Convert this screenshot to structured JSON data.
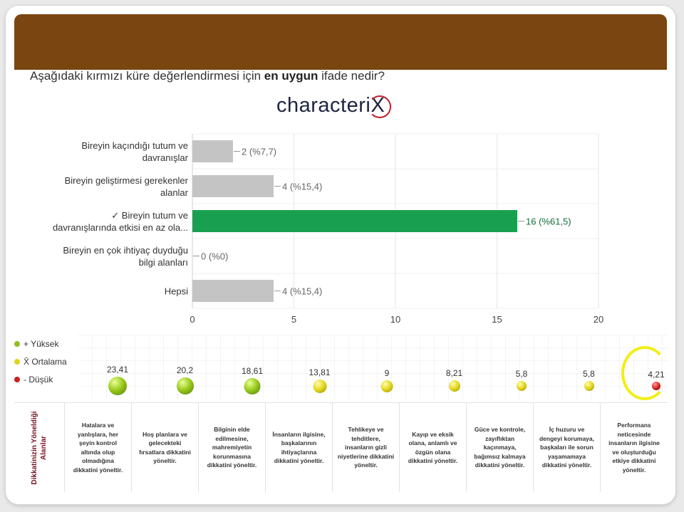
{
  "question": {
    "prefix": "Aşağıdaki kırmızı küre değerlendirmesi için ",
    "emphasis": "en uygun",
    "suffix": " ifade nedir?"
  },
  "logo": {
    "text": "characteri",
    "x": "X"
  },
  "chart_data": {
    "type": "bar",
    "orientation": "horizontal",
    "categories": [
      [
        "Bireyin kaçındığı tutum ve",
        "davranışlar"
      ],
      [
        "Bireyin geliştirmesi gerekenler",
        "alanlar"
      ],
      [
        "✓ Bireyin tutum ve",
        "davranışlarında etkisi en az ola..."
      ],
      [
        "Bireyin en çok ihtiyaç duyduğu",
        "bilgi alanları"
      ],
      [
        "Hepsi"
      ]
    ],
    "values": [
      2,
      4,
      16,
      0,
      4
    ],
    "data_labels": [
      "2 (%7,7)",
      "4 (%15,4)",
      "16 (%61,5)",
      "0 (%0)",
      "4 (%15,4)"
    ],
    "bar_colors": [
      "#c4c4c4",
      "#c4c4c4",
      "#18a050",
      "#c4c4c4",
      "#c4c4c4"
    ],
    "xlim": [
      0,
      20
    ],
    "x_ticks": [
      0,
      5,
      10,
      15,
      20
    ],
    "grid": true
  },
  "legend": [
    {
      "label": "+ Yüksek",
      "color": "#8fbf1a"
    },
    {
      "label": "X̄ Ortalama",
      "color": "#e0d41a"
    },
    {
      "label": "- Düşük",
      "color": "#cc1f1f"
    }
  ],
  "bubbles": [
    {
      "value": "23,41",
      "level": "high"
    },
    {
      "value": "20,2",
      "level": "high"
    },
    {
      "value": "18,61",
      "level": "high"
    },
    {
      "value": "13,81",
      "level": "average"
    },
    {
      "value": "9",
      "level": "average"
    },
    {
      "value": "8,21",
      "level": "average"
    },
    {
      "value": "5,8",
      "level": "average"
    },
    {
      "value": "5,8",
      "level": "average"
    },
    {
      "value": "4,21",
      "level": "low"
    }
  ],
  "side_label": [
    "Dikkatinizin Yöneldiği",
    "Alanlar"
  ],
  "descriptions": [
    "Hatalara ve yanlışlara, her şeyin kontrol altında olup olmadığına dikkatini yöneltir.",
    "Hoş planlara ve gelecekteki fırsatlara dikkatini yöneltir.",
    "Bilginin elde edilmesine, mahremiyetin korunmasına dikkatini yöneltir.",
    "İnsanların ilgisine, başkalarının ihtiyaçlarına dikkatini yöneltir.",
    "Tehlikeye ve tehditlere, insanların gizli niyetlerine dikkatini yöneltir.",
    "Kayıp ve eksik olana, anlamlı ve özgün olana dikkatini yöneltir.",
    "Güce ve kontrole, zayıflıktan kaçınmaya, bağımsız kalmaya dikkatini yöneltir.",
    "İç huzuru ve dengeyi korumaya, başkaları ile sorun yaşamamaya dikkatini yöneltir.",
    "Performans neticesinde insanların ilgisine ve oluşturduğu etkiye dikkatini yöneltir."
  ]
}
